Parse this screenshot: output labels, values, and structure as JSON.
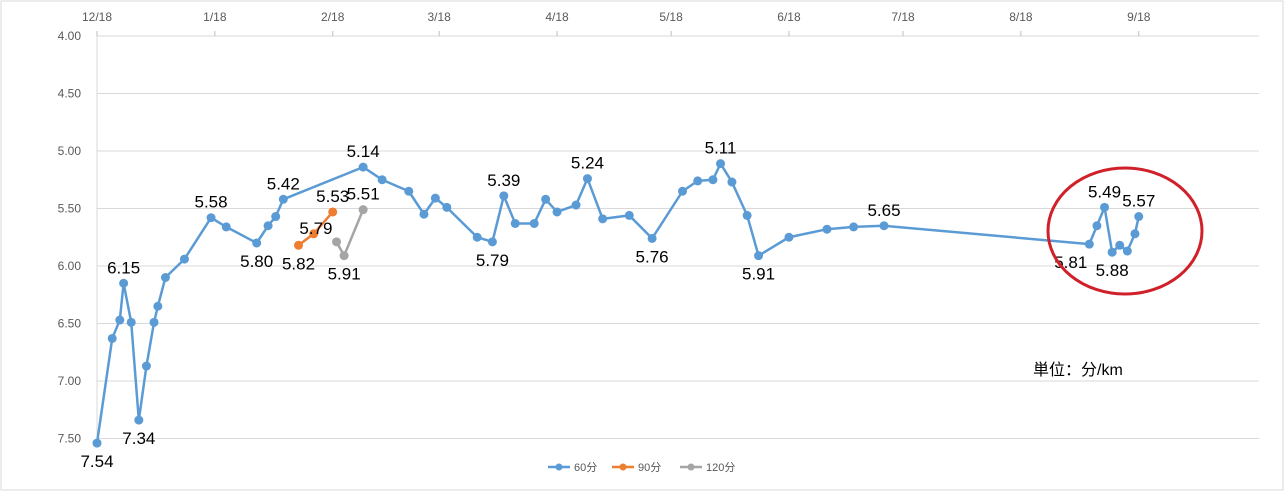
{
  "chart_data": {
    "type": "line",
    "title": "",
    "xlabel": "",
    "ylabel": "",
    "unit_label": "単位：分/km",
    "x_ticks": [
      "12/18",
      "1/18",
      "2/18",
      "3/18",
      "4/18",
      "5/18",
      "6/18",
      "7/18",
      "8/18",
      "9/18"
    ],
    "y_ticks": [
      "4.00",
      "4.50",
      "5.00",
      "5.50",
      "6.00",
      "6.50",
      "7.00",
      "7.50"
    ],
    "y_axis": "reversed",
    "ylim": [
      4.0,
      7.75
    ],
    "grid": "horizontal",
    "legend_position": "bottom",
    "colors": {
      "60分": "#5b9bd5",
      "90分": "#ed7d31",
      "120分": "#a5a5a5",
      "highlight": "#d0202a"
    },
    "series": [
      {
        "name": "60分",
        "points": [
          {
            "x": "12/18",
            "y": 7.54,
            "label": "7.54"
          },
          {
            "x": "12/22",
            "y": 6.63
          },
          {
            "x": "12/24",
            "y": 6.47
          },
          {
            "x": "12/25",
            "y": 6.15,
            "label": "6.15"
          },
          {
            "x": "12/27",
            "y": 6.49
          },
          {
            "x": "12/29",
            "y": 7.34,
            "label": "7.34"
          },
          {
            "x": "12/31",
            "y": 6.87
          },
          {
            "x": "1/2",
            "y": 6.49
          },
          {
            "x": "1/3",
            "y": 6.35
          },
          {
            "x": "1/5",
            "y": 6.1
          },
          {
            "x": "1/10",
            "y": 5.94
          },
          {
            "x": "1/17",
            "y": 5.58,
            "label": "5.58"
          },
          {
            "x": "1/21",
            "y": 5.66
          },
          {
            "x": "1/29",
            "y": 5.8,
            "label": "5.80"
          },
          {
            "x": "2/1",
            "y": 5.65
          },
          {
            "x": "2/3",
            "y": 5.57
          },
          {
            "x": "2/5",
            "y": 5.42,
            "label": "5.42"
          },
          {
            "x": "2/26",
            "y": 5.14,
            "label": "5.14"
          },
          {
            "x": "3/3",
            "y": 5.25
          },
          {
            "x": "3/10",
            "y": 5.35
          },
          {
            "x": "3/14",
            "y": 5.55
          },
          {
            "x": "3/17",
            "y": 5.41
          },
          {
            "x": "3/20",
            "y": 5.49
          },
          {
            "x": "3/28",
            "y": 5.75
          },
          {
            "x": "4/1",
            "y": 5.79,
            "label": "5.79"
          },
          {
            "x": "4/4",
            "y": 5.39,
            "label": "5.39"
          },
          {
            "x": "4/7",
            "y": 5.63
          },
          {
            "x": "4/12",
            "y": 5.63
          },
          {
            "x": "4/15",
            "y": 5.42
          },
          {
            "x": "4/18",
            "y": 5.53
          },
          {
            "x": "4/23",
            "y": 5.47
          },
          {
            "x": "4/26",
            "y": 5.24,
            "label": "5.24"
          },
          {
            "x": "4/30",
            "y": 5.59
          },
          {
            "x": "5/7",
            "y": 5.56
          },
          {
            "x": "5/13",
            "y": 5.76,
            "label": "5.76"
          },
          {
            "x": "5/21",
            "y": 5.35
          },
          {
            "x": "5/25",
            "y": 5.26
          },
          {
            "x": "5/29",
            "y": 5.25
          },
          {
            "x": "5/31",
            "y": 5.11,
            "label": "5.11"
          },
          {
            "x": "6/3",
            "y": 5.27
          },
          {
            "x": "6/7",
            "y": 5.56
          },
          {
            "x": "6/10",
            "y": 5.91,
            "label": "5.91"
          },
          {
            "x": "6/18",
            "y": 5.75
          },
          {
            "x": "6/28",
            "y": 5.68
          },
          {
            "x": "7/5",
            "y": 5.66
          },
          {
            "x": "7/13",
            "y": 5.65,
            "label": "5.65"
          },
          {
            "x": "9/5",
            "y": 5.81,
            "label": "5.81"
          },
          {
            "x": "9/7",
            "y": 5.65
          },
          {
            "x": "9/9",
            "y": 5.49,
            "label": "5.49"
          },
          {
            "x": "9/11",
            "y": 5.88,
            "label": "5.88"
          },
          {
            "x": "9/13",
            "y": 5.82
          },
          {
            "x": "9/15",
            "y": 5.87
          },
          {
            "x": "9/17",
            "y": 5.72
          },
          {
            "x": "9/18",
            "y": 5.57,
            "label": "5.57"
          }
        ]
      },
      {
        "name": "90分",
        "points": [
          {
            "x": "2/9",
            "y": 5.82,
            "label": "5.82"
          },
          {
            "x": "2/13",
            "y": 5.72
          },
          {
            "x": "2/18",
            "y": 5.53,
            "label": "5.53"
          }
        ]
      },
      {
        "name": "120分",
        "points": [
          {
            "x": "2/19",
            "y": 5.79,
            "label": "5.79"
          },
          {
            "x": "2/21",
            "y": 5.91,
            "label": "5.91"
          },
          {
            "x": "2/26",
            "y": 5.51,
            "label": "5.51"
          }
        ]
      }
    ],
    "annotations": [
      {
        "type": "ellipse",
        "color": "#d0202a",
        "around": "9/4 – 9/19"
      }
    ]
  }
}
